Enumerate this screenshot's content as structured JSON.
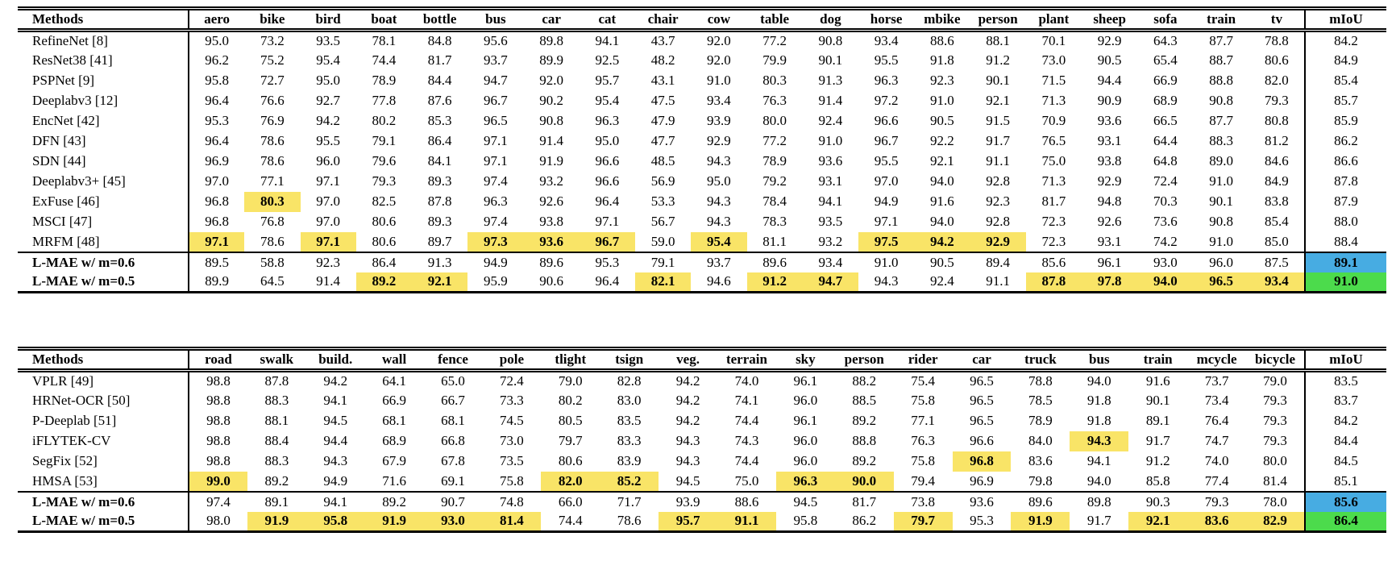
{
  "page": {
    "background": "#ffffff"
  },
  "colors": {
    "highlight_yellow": "#F9E467",
    "miou_blue": "#47ACE2",
    "miou_green": "#4CDB4C",
    "rule": "#000000"
  },
  "tables": [
    {
      "id": "pascal_voc_results",
      "header": {
        "methods": "Methods",
        "classes": [
          "aero",
          "bike",
          "bird",
          "boat",
          "bottle",
          "bus",
          "car",
          "cat",
          "chair",
          "cow",
          "table",
          "dog",
          "horse",
          "mbike",
          "person",
          "plant",
          "sheep",
          "sofa",
          "train",
          "tv"
        ],
        "miou": "mIoU"
      },
      "ours_start_index": 11,
      "rows": [
        {
          "method": "RefineNet [8]",
          "ours": false,
          "values": [
            "95.0",
            "73.2",
            "93.5",
            "78.1",
            "84.8",
            "95.6",
            "89.8",
            "94.1",
            "43.7",
            "92.0",
            "77.2",
            "90.8",
            "93.4",
            "88.6",
            "88.1",
            "70.1",
            "92.9",
            "64.3",
            "87.7",
            "78.8"
          ],
          "hl": [],
          "miou": "84.2",
          "miou_color": null
        },
        {
          "method": "ResNet38 [41]",
          "ours": false,
          "values": [
            "96.2",
            "75.2",
            "95.4",
            "74.4",
            "81.7",
            "93.7",
            "89.9",
            "92.5",
            "48.2",
            "92.0",
            "79.9",
            "90.1",
            "95.5",
            "91.8",
            "91.2",
            "73.0",
            "90.5",
            "65.4",
            "88.7",
            "80.6"
          ],
          "hl": [],
          "miou": "84.9",
          "miou_color": null
        },
        {
          "method": "PSPNet [9]",
          "ours": false,
          "values": [
            "95.8",
            "72.7",
            "95.0",
            "78.9",
            "84.4",
            "94.7",
            "92.0",
            "95.7",
            "43.1",
            "91.0",
            "80.3",
            "91.3",
            "96.3",
            "92.3",
            "90.1",
            "71.5",
            "94.4",
            "66.9",
            "88.8",
            "82.0"
          ],
          "hl": [],
          "miou": "85.4",
          "miou_color": null
        },
        {
          "method": "Deeplabv3 [12]",
          "ours": false,
          "values": [
            "96.4",
            "76.6",
            "92.7",
            "77.8",
            "87.6",
            "96.7",
            "90.2",
            "95.4",
            "47.5",
            "93.4",
            "76.3",
            "91.4",
            "97.2",
            "91.0",
            "92.1",
            "71.3",
            "90.9",
            "68.9",
            "90.8",
            "79.3"
          ],
          "hl": [],
          "miou": "85.7",
          "miou_color": null
        },
        {
          "method": "EncNet [42]",
          "ours": false,
          "values": [
            "95.3",
            "76.9",
            "94.2",
            "80.2",
            "85.3",
            "96.5",
            "90.8",
            "96.3",
            "47.9",
            "93.9",
            "80.0",
            "92.4",
            "96.6",
            "90.5",
            "91.5",
            "70.9",
            "93.6",
            "66.5",
            "87.7",
            "80.8"
          ],
          "hl": [],
          "miou": "85.9",
          "miou_color": null
        },
        {
          "method": "DFN [43]",
          "ours": false,
          "values": [
            "96.4",
            "78.6",
            "95.5",
            "79.1",
            "86.4",
            "97.1",
            "91.4",
            "95.0",
            "47.7",
            "92.9",
            "77.2",
            "91.0",
            "96.7",
            "92.2",
            "91.7",
            "76.5",
            "93.1",
            "64.4",
            "88.3",
            "81.2"
          ],
          "hl": [],
          "miou": "86.2",
          "miou_color": null
        },
        {
          "method": "SDN [44]",
          "ours": false,
          "values": [
            "96.9",
            "78.6",
            "96.0",
            "79.6",
            "84.1",
            "97.1",
            "91.9",
            "96.6",
            "48.5",
            "94.3",
            "78.9",
            "93.6",
            "95.5",
            "92.1",
            "91.1",
            "75.0",
            "93.8",
            "64.8",
            "89.0",
            "84.6"
          ],
          "hl": [],
          "miou": "86.6",
          "miou_color": null
        },
        {
          "method": "Deeplabv3+ [45]",
          "ours": false,
          "values": [
            "97.0",
            "77.1",
            "97.1",
            "79.3",
            "89.3",
            "97.4",
            "93.2",
            "96.6",
            "56.9",
            "95.0",
            "79.2",
            "93.1",
            "97.0",
            "94.0",
            "92.8",
            "71.3",
            "92.9",
            "72.4",
            "91.0",
            "84.9"
          ],
          "hl": [],
          "miou": "87.8",
          "miou_color": null
        },
        {
          "method": "ExFuse [46]",
          "ours": false,
          "values": [
            "96.8",
            "80.3",
            "97.0",
            "82.5",
            "87.8",
            "96.3",
            "92.6",
            "96.4",
            "53.3",
            "94.3",
            "78.4",
            "94.1",
            "94.9",
            "91.6",
            "92.3",
            "81.7",
            "94.8",
            "70.3",
            "90.1",
            "83.8"
          ],
          "hl": [
            1
          ],
          "miou": "87.9",
          "miou_color": null
        },
        {
          "method": "MSCI [47]",
          "ours": false,
          "values": [
            "96.8",
            "76.8",
            "97.0",
            "80.6",
            "89.3",
            "97.4",
            "93.8",
            "97.1",
            "56.7",
            "94.3",
            "78.3",
            "93.5",
            "97.1",
            "94.0",
            "92.8",
            "72.3",
            "92.6",
            "73.6",
            "90.8",
            "85.4"
          ],
          "hl": [],
          "miou": "88.0",
          "miou_color": null
        },
        {
          "method": "MRFM [48]",
          "ours": false,
          "values": [
            "97.1",
            "78.6",
            "97.1",
            "80.6",
            "89.7",
            "97.3",
            "93.6",
            "96.7",
            "59.0",
            "95.4",
            "81.1",
            "93.2",
            "97.5",
            "94.2",
            "92.9",
            "72.3",
            "93.1",
            "74.2",
            "91.0",
            "85.0"
          ],
          "hl": [
            0,
            2,
            5,
            6,
            7,
            9,
            12,
            13,
            14
          ],
          "miou": "88.4",
          "miou_color": null
        },
        {
          "method": "L-MAE w/ m=0.6",
          "ours": true,
          "values": [
            "89.5",
            "58.8",
            "92.3",
            "86.4",
            "91.3",
            "94.9",
            "89.6",
            "95.3",
            "79.1",
            "93.7",
            "89.6",
            "93.4",
            "91.0",
            "90.5",
            "89.4",
            "85.6",
            "96.1",
            "93.0",
            "96.0",
            "87.5"
          ],
          "hl": [],
          "miou": "89.1",
          "miou_color": "blue"
        },
        {
          "method": "L-MAE w/ m=0.5",
          "ours": true,
          "values": [
            "89.9",
            "64.5",
            "91.4",
            "89.2",
            "92.1",
            "95.9",
            "90.6",
            "96.4",
            "82.1",
            "94.6",
            "91.2",
            "94.7",
            "94.3",
            "92.4",
            "91.1",
            "87.8",
            "97.8",
            "94.0",
            "96.5",
            "93.4"
          ],
          "hl": [
            3,
            4,
            8,
            10,
            11,
            15,
            16,
            17,
            18,
            19
          ],
          "miou": "91.0",
          "miou_color": "green"
        }
      ]
    },
    {
      "id": "cityscapes_results",
      "header": {
        "methods": "Methods",
        "classes": [
          "road",
          "swalk",
          "build.",
          "wall",
          "fence",
          "pole",
          "tlight",
          "tsign",
          "veg.",
          "terrain",
          "sky",
          "person",
          "rider",
          "car",
          "truck",
          "bus",
          "train",
          "mcycle",
          "bicycle"
        ],
        "miou": "mIoU"
      },
      "ours_start_index": 6,
      "rows": [
        {
          "method": "VPLR [49]",
          "ours": false,
          "values": [
            "98.8",
            "87.8",
            "94.2",
            "64.1",
            "65.0",
            "72.4",
            "79.0",
            "82.8",
            "94.2",
            "74.0",
            "96.1",
            "88.2",
            "75.4",
            "96.5",
            "78.8",
            "94.0",
            "91.6",
            "73.7",
            "79.0"
          ],
          "hl": [],
          "miou": "83.5",
          "miou_color": null
        },
        {
          "method": "HRNet-OCR [50]",
          "ours": false,
          "values": [
            "98.8",
            "88.3",
            "94.1",
            "66.9",
            "66.7",
            "73.3",
            "80.2",
            "83.0",
            "94.2",
            "74.1",
            "96.0",
            "88.5",
            "75.8",
            "96.5",
            "78.5",
            "91.8",
            "90.1",
            "73.4",
            "79.3"
          ],
          "hl": [],
          "miou": "83.7",
          "miou_color": null
        },
        {
          "method": "P-Deeplab [51]",
          "ours": false,
          "values": [
            "98.8",
            "88.1",
            "94.5",
            "68.1",
            "68.1",
            "74.5",
            "80.5",
            "83.5",
            "94.2",
            "74.4",
            "96.1",
            "89.2",
            "77.1",
            "96.5",
            "78.9",
            "91.8",
            "89.1",
            "76.4",
            "79.3"
          ],
          "hl": [],
          "miou": "84.2",
          "miou_color": null
        },
        {
          "method": "iFLYTEK-CV",
          "ours": false,
          "values": [
            "98.8",
            "88.4",
            "94.4",
            "68.9",
            "66.8",
            "73.0",
            "79.7",
            "83.3",
            "94.3",
            "74.3",
            "96.0",
            "88.8",
            "76.3",
            "96.6",
            "84.0",
            "94.3",
            "91.7",
            "74.7",
            "79.3"
          ],
          "hl": [
            15
          ],
          "miou": "84.4",
          "miou_color": null
        },
        {
          "method": "SegFix [52]",
          "ours": false,
          "values": [
            "98.8",
            "88.3",
            "94.3",
            "67.9",
            "67.8",
            "73.5",
            "80.6",
            "83.9",
            "94.3",
            "74.4",
            "96.0",
            "89.2",
            "75.8",
            "96.8",
            "83.6",
            "94.1",
            "91.2",
            "74.0",
            "80.0"
          ],
          "hl": [
            13
          ],
          "miou": "84.5",
          "miou_color": null
        },
        {
          "method": "HMSA [53]",
          "ours": false,
          "values": [
            "99.0",
            "89.2",
            "94.9",
            "71.6",
            "69.1",
            "75.8",
            "82.0",
            "85.2",
            "94.5",
            "75.0",
            "96.3",
            "90.0",
            "79.4",
            "96.9",
            "79.8",
            "94.0",
            "85.8",
            "77.4",
            "81.4"
          ],
          "hl": [
            0,
            6,
            7,
            10,
            11
          ],
          "miou": "85.1",
          "miou_color": null
        },
        {
          "method": "L-MAE w/ m=0.6",
          "ours": true,
          "values": [
            "97.4",
            "89.1",
            "94.1",
            "89.2",
            "90.7",
            "74.8",
            "66.0",
            "71.7",
            "93.9",
            "88.6",
            "94.5",
            "81.7",
            "73.8",
            "93.6",
            "89.6",
            "89.8",
            "90.3",
            "79.3",
            "78.0"
          ],
          "hl": [],
          "miou": "85.6",
          "miou_color": "blue"
        },
        {
          "method": "L-MAE w/ m=0.5",
          "ours": true,
          "values": [
            "98.0",
            "91.9",
            "95.8",
            "91.9",
            "93.0",
            "81.4",
            "74.4",
            "78.6",
            "95.7",
            "91.1",
            "95.8",
            "86.2",
            "79.7",
            "95.3",
            "91.9",
            "91.7",
            "92.1",
            "83.6",
            "82.9"
          ],
          "hl": [
            1,
            2,
            3,
            4,
            5,
            8,
            9,
            12,
            14,
            16,
            17,
            18
          ],
          "miou": "86.4",
          "miou_color": "green"
        }
      ]
    }
  ]
}
